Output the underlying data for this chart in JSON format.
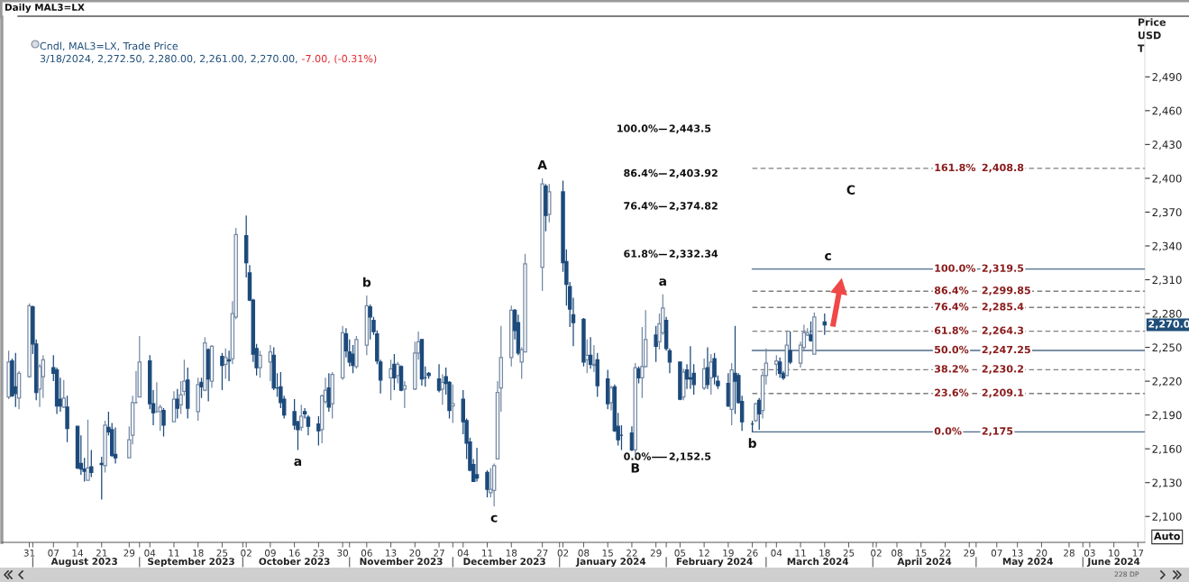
{
  "chart_data": {
    "type": "candlestick",
    "title": "Daily MAL3=LX",
    "subtitle": "Cndl, MAL3=LX, Trade Price",
    "ylabel": "Price\nUSD\nT",
    "x": [
      "2023-07-25",
      "2023-07-26",
      "2023-07-27",
      "2023-07-28",
      "2023-07-31",
      "2023-08-01",
      "2023-08-02",
      "2023-08-03",
      "2023-08-04",
      "2023-08-07",
      "2023-08-08",
      "2023-08-09",
      "2023-08-10",
      "2023-08-11",
      "2023-08-14",
      "2023-08-15",
      "2023-08-16",
      "2023-08-17",
      "2023-08-18",
      "2023-08-21",
      "2023-08-22",
      "2023-08-23",
      "2023-08-24",
      "2023-08-25",
      "2023-08-29",
      "2023-08-30",
      "2023-08-31",
      "2023-09-01",
      "2023-09-04",
      "2023-09-05",
      "2023-09-06",
      "2023-09-07",
      "2023-09-08",
      "2023-09-11",
      "2023-09-12",
      "2023-09-13",
      "2023-09-14",
      "2023-09-15",
      "2023-09-18",
      "2023-09-19",
      "2023-09-20",
      "2023-09-21",
      "2023-09-22",
      "2023-09-25",
      "2023-09-26",
      "2023-09-27",
      "2023-09-28",
      "2023-09-29",
      "2023-10-02",
      "2023-10-03",
      "2023-10-04",
      "2023-10-05",
      "2023-10-06",
      "2023-10-09",
      "2023-10-10",
      "2023-10-11",
      "2023-10-12",
      "2023-10-13",
      "2023-10-16",
      "2023-10-17",
      "2023-10-18",
      "2023-10-19",
      "2023-10-20",
      "2023-10-23",
      "2023-10-24",
      "2023-10-25",
      "2023-10-26",
      "2023-10-27",
      "2023-10-30",
      "2023-10-31",
      "2023-11-01",
      "2023-11-02",
      "2023-11-03",
      "2023-11-06",
      "2023-11-07",
      "2023-11-08",
      "2023-11-09",
      "2023-11-10",
      "2023-11-13",
      "2023-11-14",
      "2023-11-15",
      "2023-11-16",
      "2023-11-17",
      "2023-11-20",
      "2023-11-21",
      "2023-11-22",
      "2023-11-23",
      "2023-11-24",
      "2023-11-27",
      "2023-11-28",
      "2023-11-29",
      "2023-11-30",
      "2023-12-01",
      "2023-12-04",
      "2023-12-05",
      "2023-12-06",
      "2023-12-07",
      "2023-12-08",
      "2023-12-11",
      "2023-12-12",
      "2023-12-13",
      "2023-12-14",
      "2023-12-15",
      "2023-12-18",
      "2023-12-19",
      "2023-12-20",
      "2023-12-21",
      "2023-12-22",
      "2023-12-27",
      "2023-12-28",
      "2023-12-29",
      "2024-01-02",
      "2024-01-03",
      "2024-01-04",
      "2024-01-05",
      "2024-01-08",
      "2024-01-09",
      "2024-01-10",
      "2024-01-11",
      "2024-01-12",
      "2024-01-15",
      "2024-01-16",
      "2024-01-17",
      "2024-01-18",
      "2024-01-19",
      "2024-01-22",
      "2024-01-23",
      "2024-01-24",
      "2024-01-25",
      "2024-01-26",
      "2024-01-29",
      "2024-01-30",
      "2024-01-31",
      "2024-02-01",
      "2024-02-02",
      "2024-02-05",
      "2024-02-06",
      "2024-02-07",
      "2024-02-08",
      "2024-02-09",
      "2024-02-12",
      "2024-02-13",
      "2024-02-14",
      "2024-02-15",
      "2024-02-16",
      "2024-02-19",
      "2024-02-20",
      "2024-02-21",
      "2024-02-22",
      "2024-02-23",
      "2024-02-26",
      "2024-02-27",
      "2024-02-28",
      "2024-02-29",
      "2024-03-01",
      "2024-03-04",
      "2024-03-05",
      "2024-03-06",
      "2024-03-07",
      "2024-03-08",
      "2024-03-11",
      "2024-03-12",
      "2024-03-13",
      "2024-03-14",
      "2024-03-15",
      "2024-03-18"
    ],
    "ohlc": [
      [
        2206,
        2247,
        2204,
        2237
      ],
      [
        2238,
        2240,
        2206,
        2207
      ],
      [
        2215,
        2245,
        2197,
        2209
      ],
      [
        2205,
        2229,
        2195,
        2227
      ],
      [
        2224,
        2289,
        2223,
        2287
      ],
      [
        2286,
        2287,
        2244,
        2253
      ],
      [
        2253,
        2257,
        2203,
        2210
      ],
      [
        2213,
        2235,
        2197,
        2233
      ],
      [
        2224,
        2243,
        2205,
        2239
      ],
      [
        2232,
        2243,
        2220,
        2227
      ],
      [
        2230,
        2232,
        2191,
        2198
      ],
      [
        2204,
        2223,
        2193,
        2198
      ],
      [
        2197,
        2221,
        2196,
        2205
      ],
      [
        2197,
        2207,
        2166,
        2178
      ],
      [
        2180,
        2180,
        2142,
        2143
      ],
      [
        2147,
        2172,
        2137,
        2142
      ],
      [
        2142,
        2152,
        2131,
        2140
      ],
      [
        2132,
        2186,
        2132,
        2143
      ],
      [
        2144,
        2159,
        2135,
        2139
      ],
      [
        2147,
        2153,
        2115,
        2146
      ],
      [
        2145,
        2185,
        2139,
        2181
      ],
      [
        2179,
        2193,
        2172,
        2175
      ],
      [
        2177,
        2183,
        2153,
        2154
      ],
      [
        2155,
        2179,
        2147,
        2152
      ],
      [
        2152,
        2180,
        2152,
        2168
      ],
      [
        2172,
        2207,
        2164,
        2201
      ],
      [
        2201,
        2229,
        2200,
        2201
      ],
      [
        2206,
        2260,
        2206,
        2237
      ],
      [
        2238,
        2243,
        2195,
        2200
      ],
      [
        2200,
        2212,
        2181,
        2192
      ],
      [
        2193,
        2219,
        2192,
        2193
      ],
      [
        2193,
        2199,
        2176,
        2197
      ],
      [
        2194,
        2196,
        2171,
        2181
      ],
      [
        2184,
        2211,
        2184,
        2204
      ],
      [
        2204,
        2213,
        2187,
        2196
      ],
      [
        2199,
        2220,
        2191,
        2208
      ],
      [
        2211,
        2239,
        2207,
        2220
      ],
      [
        2221,
        2232,
        2187,
        2196
      ],
      [
        2193,
        2223,
        2185,
        2217
      ],
      [
        2219,
        2223,
        2205,
        2215
      ],
      [
        2212,
        2259,
        2211,
        2254
      ],
      [
        2248,
        2249,
        2202,
        2222
      ],
      [
        2220,
        2252,
        2214,
        2251
      ],
      [
        2242,
        2245,
        2212,
        2234
      ],
      [
        2235,
        2249,
        2222,
        2241
      ],
      [
        2239,
        2247,
        2220,
        2238
      ],
      [
        2240,
        2291,
        2235,
        2280
      ],
      [
        2277,
        2356,
        2275,
        2350
      ],
      [
        2349,
        2367,
        2312,
        2325
      ],
      [
        2316,
        2323,
        2291,
        2292
      ],
      [
        2292,
        2293,
        2237,
        2244
      ],
      [
        2249,
        2253,
        2225,
        2232
      ],
      [
        2232,
        2247,
        2223,
        2243
      ],
      [
        2237,
        2252,
        2220,
        2246
      ],
      [
        2243,
        2250,
        2212,
        2214
      ],
      [
        2214,
        2227,
        2206,
        2214
      ],
      [
        2215,
        2228,
        2196,
        2201
      ],
      [
        2204,
        2207,
        2187,
        2190
      ],
      [
        2193,
        2204,
        2177,
        2181
      ],
      [
        2184,
        2185,
        2159,
        2177
      ],
      [
        2179,
        2199,
        2176,
        2189
      ],
      [
        2193,
        2196,
        2187,
        2191
      ],
      [
        2188,
        2190,
        2172,
        2180
      ],
      [
        2182,
        2189,
        2163,
        2176
      ],
      [
        2177,
        2208,
        2165,
        2207
      ],
      [
        2202,
        2223,
        2200,
        2212
      ],
      [
        2214,
        2227,
        2193,
        2197
      ],
      [
        2200,
        2228,
        2187,
        2226
      ],
      [
        2223,
        2269,
        2221,
        2263
      ],
      [
        2262,
        2267,
        2241,
        2247
      ],
      [
        2246,
        2257,
        2233,
        2237
      ],
      [
        2244,
        2252,
        2227,
        2234
      ],
      [
        2233,
        2260,
        2231,
        2257
      ],
      [
        2252,
        2296,
        2243,
        2287
      ],
      [
        2286,
        2288,
        2257,
        2277
      ],
      [
        2274,
        2277,
        2261,
        2264
      ],
      [
        2262,
        2265,
        2235,
        2238
      ],
      [
        2237,
        2239,
        2209,
        2221
      ],
      [
        2223,
        2239,
        2203,
        2231
      ],
      [
        2235,
        2244,
        2212,
        2223
      ],
      [
        2225,
        2237,
        2218,
        2235
      ],
      [
        2233,
        2234,
        2211,
        2212
      ],
      [
        2213,
        2220,
        2196,
        2216
      ],
      [
        2213,
        2255,
        2212,
        2245
      ],
      [
        2245,
        2264,
        2239,
        2255
      ],
      [
        2257,
        2257,
        2216,
        2222
      ],
      [
        2223,
        2233,
        2215,
        2223
      ],
      [
        2227,
        2228,
        2222,
        2225
      ],
      [
        2222,
        2235,
        2210,
        2212
      ],
      [
        2213,
        2226,
        2199,
        2219
      ],
      [
        2224,
        2232,
        2208,
        2218
      ],
      [
        2219,
        2220,
        2187,
        2194
      ],
      [
        2198,
        2217,
        2183,
        2200
      ],
      [
        2204,
        2212,
        2173,
        2184
      ],
      [
        2185,
        2187,
        2151,
        2165
      ],
      [
        2166,
        2170,
        2140,
        2141
      ],
      [
        2146,
        2151,
        2131,
        2131
      ],
      [
        2137,
        2161,
        2131,
        2134
      ],
      [
        2139,
        2141,
        2117,
        2124
      ],
      [
        2121,
        2143,
        2117,
        2124
      ],
      [
        2123,
        2147,
        2109,
        2145
      ],
      [
        2151,
        2220,
        2151,
        2210
      ],
      [
        2214,
        2269,
        2193,
        2241
      ],
      [
        2241,
        2287,
        2233,
        2283
      ],
      [
        2283,
        2284,
        2257,
        2265
      ],
      [
        2272,
        2279,
        2243,
        2245
      ],
      [
        2237,
        2250,
        2222,
        2248
      ],
      [
        2246,
        2333,
        2246,
        2324
      ],
      [
        2321,
        2400,
        2300,
        2395
      ],
      [
        2393,
        2395,
        2353,
        2367
      ],
      [
        2368,
        2395,
        2361,
        2388
      ],
      [
        2388,
        2398,
        2317,
        2325
      ],
      [
        2326,
        2337,
        2287,
        2306
      ],
      [
        2304,
        2308,
        2268,
        2284
      ],
      [
        2279,
        2294,
        2251,
        2272
      ],
      [
        2275,
        2276,
        2233,
        2237
      ],
      [
        2239,
        2257,
        2227,
        2243
      ],
      [
        2243,
        2259,
        2231,
        2235
      ],
      [
        2234,
        2252,
        2228,
        2235
      ],
      [
        2239,
        2245,
        2206,
        2216
      ],
      [
        2222,
        2230,
        2195,
        2200
      ],
      [
        2201,
        2216,
        2194,
        2214
      ],
      [
        2215,
        2217,
        2175,
        2176
      ],
      [
        2180,
        2192,
        2163,
        2168
      ],
      [
        2172,
        2181,
        2159,
        2172
      ],
      [
        2174,
        2180,
        2158,
        2159
      ],
      [
        2159,
        2236,
        2153,
        2232
      ],
      [
        2231,
        2233,
        2218,
        2223
      ],
      [
        2223,
        2268,
        2205,
        2233
      ],
      [
        2233,
        2283,
        2232,
        2257
      ],
      [
        2261,
        2269,
        2237,
        2251
      ],
      [
        2255,
        2280,
        2248,
        2271
      ],
      [
        2263,
        2297,
        2261,
        2285
      ],
      [
        2274,
        2277,
        2247,
        2249
      ],
      [
        2247,
        2249,
        2227,
        2237
      ],
      [
        2237,
        2237,
        2203,
        2204
      ],
      [
        2206,
        2231,
        2203,
        2228
      ],
      [
        2230,
        2235,
        2213,
        2222
      ],
      [
        2223,
        2251,
        2213,
        2222
      ],
      [
        2227,
        2235,
        2208,
        2217
      ],
      [
        2214,
        2240,
        2212,
        2231
      ],
      [
        2232,
        2250,
        2213,
        2217
      ],
      [
        2223,
        2244,
        2208,
        2237
      ],
      [
        2240,
        2245,
        2217,
        2224
      ],
      [
        2220,
        2225,
        2213,
        2216
      ],
      [
        2218,
        2227,
        2197,
        2198
      ],
      [
        2195,
        2236,
        2181,
        2230
      ],
      [
        2227,
        2269,
        2191,
        2220
      ],
      [
        2225,
        2227,
        2200,
        2201
      ],
      [
        2202,
        2207,
        2176,
        2184
      ],
      [
        2182,
        2185,
        2175,
        2182
      ],
      [
        2185,
        2201,
        2184,
        2200
      ],
      [
        2203,
        2205,
        2177,
        2191
      ],
      [
        2194,
        2229,
        2187,
        2225
      ],
      [
        2225,
        2249,
        2217,
        2236
      ],
      [
        2235,
        2243,
        2225,
        2238
      ],
      [
        2237,
        2241,
        2223,
        2227
      ],
      [
        2227,
        2229,
        2221,
        2223
      ],
      [
        2225,
        2265,
        2225,
        2252
      ],
      [
        2247,
        2264,
        2235,
        2237
      ],
      [
        2236,
        2255,
        2232,
        2252
      ],
      [
        2250,
        2270,
        2247,
        2263
      ],
      [
        2261,
        2267,
        2260,
        2263
      ],
      [
        2261,
        2273,
        2255,
        2256
      ],
      [
        2244,
        2281,
        2244,
        2277
      ],
      [
        2272.5,
        2280,
        2261,
        2270
      ]
    ],
    "colors": [
      "#7489a4",
      "#1c4a7b",
      "#1c4a7b",
      "#7489a4",
      "#7489a4",
      "#1c4a7b",
      "#1c4a7b",
      "#7489a4",
      "#7489a4",
      "#1c4a7b",
      "#1c4a7b",
      "#1c4a7b",
      "#7489a4",
      "#1c4a7b",
      "#1c4a7b",
      "#1c4a7b",
      "#1c4a7b",
      "#7489a4",
      "#1c4a7b",
      "#1c4a7b",
      "#7489a4",
      "#1c4a7b",
      "#1c4a7b",
      "#1c4a7b",
      "#7489a4",
      "#7489a4",
      "#7489a4",
      "#7489a4",
      "#1c4a7b",
      "#1c4a7b",
      "#7489a4",
      "#7489a4",
      "#1c4a7b",
      "#7489a4",
      "#1c4a7b",
      "#7489a4",
      "#7489a4",
      "#1c4a7b",
      "#7489a4",
      "#1c4a7b",
      "#7489a4",
      "#1c4a7b",
      "#7489a4",
      "#1c4a7b",
      "#7489a4",
      "#1c4a7b",
      "#7489a4",
      "#7489a4",
      "#1c4a7b",
      "#1c4a7b",
      "#1c4a7b",
      "#1c4a7b",
      "#7489a4",
      "#7489a4",
      "#1c4a7b",
      "#1c4a7b",
      "#1c4a7b",
      "#1c4a7b",
      "#1c4a7b",
      "#1c4a7b",
      "#7489a4",
      "#1c4a7b",
      "#1c4a7b",
      "#1c4a7b",
      "#7489a4",
      "#7489a4",
      "#1c4a7b",
      "#7489a4",
      "#7489a4",
      "#1c4a7b",
      "#1c4a7b",
      "#1c4a7b",
      "#7489a4",
      "#7489a4",
      "#1c4a7b",
      "#1c4a7b",
      "#1c4a7b",
      "#1c4a7b",
      "#7489a4",
      "#1c4a7b",
      "#7489a4",
      "#1c4a7b",
      "#7489a4",
      "#7489a4",
      "#7489a4",
      "#1c4a7b",
      "#1c4a7b",
      "#1c4a7b",
      "#1c4a7b",
      "#7489a4",
      "#1c4a7b",
      "#1c4a7b",
      "#7489a4",
      "#1c4a7b",
      "#1c4a7b",
      "#1c4a7b",
      "#1c4a7b",
      "#1c4a7b",
      "#1c4a7b",
      "#7489a4",
      "#7489a4",
      "#7489a4",
      "#7489a4",
      "#7489a4",
      "#1c4a7b",
      "#1c4a7b",
      "#7489a4",
      "#7489a4",
      "#7489a4",
      "#1c4a7b",
      "#7489a4",
      "#1c4a7b",
      "#1c4a7b",
      "#1c4a7b",
      "#1c4a7b",
      "#1c4a7b",
      "#7489a4",
      "#1c4a7b",
      "#7489a4",
      "#1c4a7b",
      "#1c4a7b",
      "#7489a4",
      "#1c4a7b",
      "#1c4a7b",
      "#1c4a7b",
      "#1c4a7b",
      "#7489a4",
      "#1c4a7b",
      "#7489a4",
      "#7489a4",
      "#1c4a7b",
      "#7489a4",
      "#7489a4",
      "#1c4a7b",
      "#1c4a7b",
      "#1c4a7b",
      "#7489a4",
      "#1c4a7b",
      "#1c4a7b",
      "#1c4a7b",
      "#7489a4",
      "#1c4a7b",
      "#7489a4",
      "#1c4a7b",
      "#1c4a7b",
      "#1c4a7b",
      "#7489a4",
      "#1c4a7b",
      "#1c4a7b",
      "#1c4a7b",
      "#1c4a7b",
      "#7489a4",
      "#1c4a7b",
      "#7489a4",
      "#7489a4",
      "#7489a4",
      "#1c4a7b",
      "#1c4a7b",
      "#7489a4",
      "#1c4a7b",
      "#7489a4",
      "#7489a4",
      "#7489a4",
      "#1c4a7b",
      "#7489a4",
      "#1c4a7b"
    ],
    "series": [
      {
        "type": "line",
        "name": "0.0% 2,152.5",
        "color": "#000000",
        "line_style": "solid",
        "x": [
          "2024-01-28",
          "2024-02-01"
        ],
        "values": [
          2152.5,
          2152.5
        ]
      },
      {
        "type": "line",
        "name": "100.0% 2,443.5",
        "color": "#000000",
        "line_style": "solid",
        "x": [
          "2024-01-30",
          "2024-02-01"
        ],
        "values": [
          2443.5,
          2443.5
        ]
      },
      {
        "type": "line",
        "name": "86.4% 2,403.92",
        "color": "#000000",
        "line_style": "solid",
        "x": [
          "2024-01-30",
          "2024-02-01"
        ],
        "values": [
          2403.92,
          2403.92
        ]
      },
      {
        "type": "line",
        "name": "76.4% 2,374.82",
        "color": "#000000",
        "line_style": "solid",
        "x": [
          "2024-01-30",
          "2024-02-01"
        ],
        "values": [
          2374.82,
          2374.82
        ]
      },
      {
        "type": "line",
        "name": "61.8% 2,332.34",
        "color": "#000000",
        "line_style": "solid",
        "x": [
          "2024-01-30",
          "2024-02-01"
        ],
        "values": [
          2332.34,
          2332.34
        ]
      },
      {
        "type": "line",
        "name": "161.8% 2,408.8",
        "color": "#7f7f7f",
        "line_style": "dashed",
        "x": [
          "2024-02-26",
          "2024-06-19"
        ],
        "values": [
          2408.8,
          2408.8
        ]
      },
      {
        "type": "line",
        "name": "100.0% 2,319.5",
        "color": "#4d6b8a",
        "line_style": "solid",
        "x": [
          "2024-02-26",
          "2024-06-19"
        ],
        "values": [
          2319.5,
          2319.5
        ]
      },
      {
        "type": "line",
        "name": "86.4% 2,299.85",
        "color": "#7f7f7f",
        "line_style": "dashed",
        "x": [
          "2024-02-26",
          "2024-06-19"
        ],
        "values": [
          2299.85,
          2299.85
        ]
      },
      {
        "type": "line",
        "name": "76.4% 2,285.4",
        "color": "#7f7f7f",
        "line_style": "dashed",
        "x": [
          "2024-02-26",
          "2024-06-19"
        ],
        "values": [
          2285.4,
          2285.4
        ]
      },
      {
        "type": "line",
        "name": "61.8% 2,264.3",
        "color": "#7f7f7f",
        "line_style": "dashed",
        "x": [
          "2024-02-26",
          "2024-06-19"
        ],
        "values": [
          2264.3,
          2264.3
        ]
      },
      {
        "type": "line",
        "name": "50.0% 2,247.25",
        "color": "#4d6b8a",
        "line_style": "solid",
        "x": [
          "2024-02-26",
          "2024-06-19"
        ],
        "values": [
          2247.25,
          2247.25
        ]
      },
      {
        "type": "line",
        "name": "38.2% 2,230.2",
        "color": "#7f7f7f",
        "line_style": "dashed",
        "x": [
          "2024-02-26",
          "2024-06-19"
        ],
        "values": [
          2230.2,
          2230.2
        ]
      },
      {
        "type": "line",
        "name": "23.6% 2,209.1",
        "color": "#7f7f7f",
        "line_style": "dashed",
        "x": [
          "2024-02-26",
          "2024-06-19"
        ],
        "values": [
          2209.1,
          2209.1
        ]
      },
      {
        "type": "line",
        "name": "0.0% 2,175",
        "color": "#4d6b8a",
        "line_style": "solid",
        "x": [
          "2024-02-26",
          "2024-06-19"
        ],
        "values": [
          2175,
          2175
        ]
      }
    ],
    "annotations": [
      "3/18/2024, 2,272.50, 2,280.00, 2,261.00, 2,270.00,",
      "-7.00, (-0.31%)",
      "C",
      "2,270.0",
      "Auto",
      "228 DP",
      {
        "text": "a",
        "x": "2023-10-17",
        "y": 2159
      },
      {
        "text": "b",
        "x": "2023-11-06",
        "y": 2296
      },
      {
        "text": "c",
        "x": "2023-12-13",
        "y": 2109
      },
      {
        "text": "A",
        "x": "2023-12-27",
        "y": 2400
      },
      {
        "text": "B",
        "x": "2024-01-23",
        "y": 2153
      },
      {
        "text": "a",
        "x": "2024-01-31",
        "y": 2297
      },
      {
        "text": "b",
        "x": "2024-02-26",
        "y": 2175
      },
      {
        "text": "c",
        "x": "2024-03-19",
        "y": 2319.5
      }
    ],
    "xlim": [
      "2023-07-23",
      "2024-06-19"
    ],
    "xticks": [
      {
        "value": "2023-07-31",
        "label": "31"
      },
      {
        "value": "2023-08-07",
        "label": "07"
      },
      {
        "value": "2023-08-14",
        "label": "14"
      },
      {
        "value": "2023-08-21",
        "label": "21"
      },
      {
        "value": "2023-08-29",
        "label": "29"
      },
      {
        "value": "2023-09-04",
        "label": "04"
      },
      {
        "value": "2023-09-11",
        "label": "11"
      },
      {
        "value": "2023-09-18",
        "label": "18"
      },
      {
        "value": "2023-09-25",
        "label": "25"
      },
      {
        "value": "2023-10-02",
        "label": "02"
      },
      {
        "value": "2023-10-09",
        "label": "09"
      },
      {
        "value": "2023-10-16",
        "label": "16"
      },
      {
        "value": "2023-10-23",
        "label": "23"
      },
      {
        "value": "2023-10-30",
        "label": "30"
      },
      {
        "value": "2023-11-06",
        "label": "06"
      },
      {
        "value": "2023-11-13",
        "label": "13"
      },
      {
        "value": "2023-11-20",
        "label": "20"
      },
      {
        "value": "2023-11-27",
        "label": "27"
      },
      {
        "value": "2023-12-04",
        "label": "04"
      },
      {
        "value": "2023-12-11",
        "label": "11"
      },
      {
        "value": "2023-12-18",
        "label": "18"
      },
      {
        "value": "2023-12-27",
        "label": "27"
      },
      {
        "value": "2024-01-02",
        "label": "02"
      },
      {
        "value": "2024-01-08",
        "label": "08"
      },
      {
        "value": "2024-01-15",
        "label": "15"
      },
      {
        "value": "2024-01-22",
        "label": "22"
      },
      {
        "value": "2024-01-29",
        "label": "29"
      },
      {
        "value": "2024-02-05",
        "label": "05"
      },
      {
        "value": "2024-02-12",
        "label": "12"
      },
      {
        "value": "2024-02-19",
        "label": "19"
      },
      {
        "value": "2024-02-26",
        "label": "26"
      },
      {
        "value": "2024-03-04",
        "label": "04"
      },
      {
        "value": "2024-03-11",
        "label": "11"
      },
      {
        "value": "2024-03-18",
        "label": "18"
      },
      {
        "value": "2024-03-25",
        "label": "25"
      },
      {
        "value": "2024-04-02",
        "label": "02"
      },
      {
        "value": "2024-04-08",
        "label": "08"
      },
      {
        "value": "2024-04-15",
        "label": "15"
      },
      {
        "value": "2024-04-22",
        "label": "22"
      },
      {
        "value": "2024-04-29",
        "label": "29"
      },
      {
        "value": "2024-05-07",
        "label": "07"
      },
      {
        "value": "2024-05-13",
        "label": "13"
      },
      {
        "value": "2024-05-20",
        "label": "20"
      },
      {
        "value": "2024-05-28",
        "label": "28"
      },
      {
        "value": "2024-06-03",
        "label": "03"
      },
      {
        "value": "2024-06-10",
        "label": "10"
      },
      {
        "value": "2024-06-17",
        "label": "17"
      }
    ],
    "x2lim": [
      "2023-07-23",
      "2024-06-19"
    ],
    "x2ticks": [
      {
        "value": "2023-08-01",
        "label": null
      },
      {
        "value": "2023-08-16",
        "label": "August 2023"
      },
      {
        "value": "2023-09-01",
        "label": null
      },
      {
        "value": "2023-09-16",
        "label": "September 2023"
      },
      {
        "value": "2023-10-01",
        "label": null
      },
      {
        "value": "2023-10-16",
        "label": "October 2023"
      },
      {
        "value": "2023-11-01",
        "label": null
      },
      {
        "value": "2023-11-16",
        "label": "November 2023"
      },
      {
        "value": "2023-12-01",
        "label": null
      },
      {
        "value": "2023-12-16",
        "label": "December 2023"
      },
      {
        "value": "2024-01-01",
        "label": null
      },
      {
        "value": "2024-01-16",
        "label": "January 2024"
      },
      {
        "value": "2024-02-01",
        "label": null
      },
      {
        "value": "2024-02-15",
        "label": "February 2024"
      },
      {
        "value": "2024-03-01",
        "label": null
      },
      {
        "value": "2024-03-16",
        "label": "March 2024"
      },
      {
        "value": "2024-04-01",
        "label": null
      },
      {
        "value": "2024-04-16",
        "label": "April 2024"
      },
      {
        "value": "2024-05-01",
        "label": null
      },
      {
        "value": "2024-05-16",
        "label": "May 2024"
      },
      {
        "value": "2024-06-01",
        "label": null
      },
      {
        "value": "2024-06-10",
        "label": "June 2024"
      }
    ],
    "ylim": [
      2077,
      2543
    ],
    "yticks": [
      {
        "value": 2100,
        "label": "2,100"
      },
      {
        "value": 2130,
        "label": "2,130"
      },
      {
        "value": 2160,
        "label": "2,160"
      },
      {
        "value": 2190,
        "label": "2,190"
      },
      {
        "value": 2220,
        "label": "2,220"
      },
      {
        "value": 2250,
        "label": "2,250"
      },
      {
        "value": 2280,
        "label": "2,280"
      },
      {
        "value": 2310,
        "label": "2,310"
      },
      {
        "value": 2340,
        "label": "2,340"
      },
      {
        "value": 2370,
        "label": "2,370"
      },
      {
        "value": 2400,
        "label": "2,400"
      },
      {
        "value": 2430,
        "label": "2,430"
      },
      {
        "value": 2460,
        "label": "2,460"
      },
      {
        "value": 2490,
        "label": "2,490"
      }
    ]
  }
}
